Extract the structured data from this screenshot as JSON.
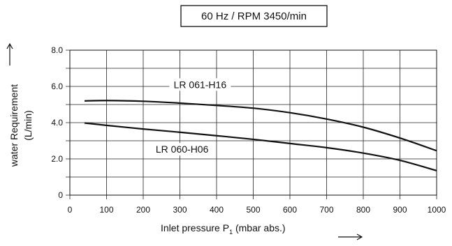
{
  "chart_data": {
    "type": "line",
    "title": "60 Hz / RPM 3450/min",
    "xlabel": "Inlet pressure P",
    "xlabel_subscript": "1",
    "xlabel_suffix": " (mbar abs.)",
    "ylabel": "water Requirement",
    "ylabel_unit": "(L/min)",
    "x_ticks": [
      "0",
      "100",
      "200",
      "300",
      "400",
      "500",
      "600",
      "700",
      "800",
      "900",
      "1000"
    ],
    "y_ticks": [
      "0",
      "2.0",
      "4.0",
      "6.0",
      "8.0"
    ],
    "xlim": [
      0,
      1000
    ],
    "ylim": [
      0,
      8
    ],
    "grid": true,
    "series": [
      {
        "name": "LR 061-H16",
        "x": [
          40,
          100,
          200,
          300,
          400,
          500,
          600,
          700,
          800,
          900,
          1000
        ],
        "y": [
          5.2,
          5.22,
          5.18,
          5.08,
          4.95,
          4.8,
          4.55,
          4.2,
          3.75,
          3.15,
          2.45
        ]
      },
      {
        "name": "LR 060-H06",
        "x": [
          40,
          100,
          200,
          300,
          400,
          500,
          600,
          700,
          800,
          900,
          1000
        ],
        "y": [
          3.98,
          3.85,
          3.65,
          3.47,
          3.28,
          3.08,
          2.85,
          2.62,
          2.32,
          1.92,
          1.35
        ]
      }
    ]
  }
}
